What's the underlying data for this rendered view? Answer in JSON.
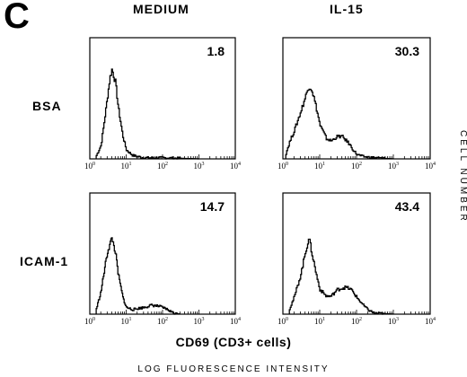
{
  "figure": {
    "panel_letter": "C",
    "column_headers": [
      "MEDIUM",
      "IL-15"
    ],
    "row_headers": [
      "BSA",
      "ICAM-1"
    ],
    "y_axis_label": "CELL NUMBER",
    "x_axis_label": "CD69 (CD3+ cells)",
    "footer_label": "LOG FLUORESCENCE INTENSITY"
  },
  "chart_data": [
    {
      "type": "area",
      "row": "BSA",
      "column": "MEDIUM",
      "annotation": "1.8",
      "x_scale": "log",
      "xlim": [
        1,
        10000
      ],
      "x_ticks": [
        "10^0",
        "10^1",
        "10^2",
        "10^3",
        "10^4"
      ],
      "grid": false,
      "histogram": {
        "x": [
          1.5,
          2,
          2.5,
          3,
          3.5,
          4,
          5,
          6,
          8,
          10,
          15,
          30,
          100,
          1000
        ],
        "y": [
          0.03,
          0.12,
          0.35,
          0.55,
          0.72,
          0.8,
          0.68,
          0.45,
          0.2,
          0.08,
          0.03,
          0.01,
          0.01,
          0
        ]
      }
    },
    {
      "type": "area",
      "row": "BSA",
      "column": "IL-15",
      "annotation": "30.3",
      "x_scale": "log",
      "xlim": [
        1,
        10000
      ],
      "x_ticks": [
        "10^0",
        "10^1",
        "10^2",
        "10^3",
        "10^4"
      ],
      "grid": false,
      "histogram": {
        "x": [
          1.2,
          1.5,
          2,
          3,
          4,
          5,
          6,
          8,
          10,
          15,
          20,
          30,
          40,
          60,
          80,
          100,
          150,
          300,
          1000
        ],
        "y": [
          0.05,
          0.15,
          0.25,
          0.42,
          0.55,
          0.65,
          0.62,
          0.45,
          0.3,
          0.18,
          0.16,
          0.2,
          0.2,
          0.14,
          0.08,
          0.04,
          0.02,
          0.01,
          0
        ]
      }
    },
    {
      "type": "area",
      "row": "ICAM-1",
      "column": "MEDIUM",
      "annotation": "14.7",
      "x_scale": "log",
      "xlim": [
        1,
        10000
      ],
      "x_ticks": [
        "10^0",
        "10^1",
        "10^2",
        "10^3",
        "10^4"
      ],
      "grid": false,
      "histogram": {
        "x": [
          1.5,
          2,
          2.5,
          3,
          3.5,
          4,
          5,
          6,
          8,
          10,
          15,
          20,
          30,
          50,
          80,
          120,
          200,
          300
        ],
        "y": [
          0.05,
          0.2,
          0.4,
          0.55,
          0.62,
          0.68,
          0.55,
          0.35,
          0.15,
          0.06,
          0.04,
          0.05,
          0.06,
          0.08,
          0.07,
          0.05,
          0.01,
          0
        ]
      }
    },
    {
      "type": "area",
      "row": "ICAM-1",
      "column": "IL-15",
      "annotation": "43.4",
      "x_scale": "log",
      "xlim": [
        1,
        10000
      ],
      "x_ticks": [
        "10^0",
        "10^1",
        "10^2",
        "10^3",
        "10^4"
      ],
      "grid": false,
      "histogram": {
        "x": [
          1.5,
          2,
          3,
          4,
          5,
          6,
          8,
          10,
          15,
          20,
          30,
          50,
          70,
          100,
          150,
          200,
          300,
          1000
        ],
        "y": [
          0.05,
          0.15,
          0.35,
          0.55,
          0.68,
          0.55,
          0.35,
          0.22,
          0.16,
          0.16,
          0.22,
          0.24,
          0.22,
          0.15,
          0.08,
          0.04,
          0.01,
          0
        ]
      }
    }
  ]
}
